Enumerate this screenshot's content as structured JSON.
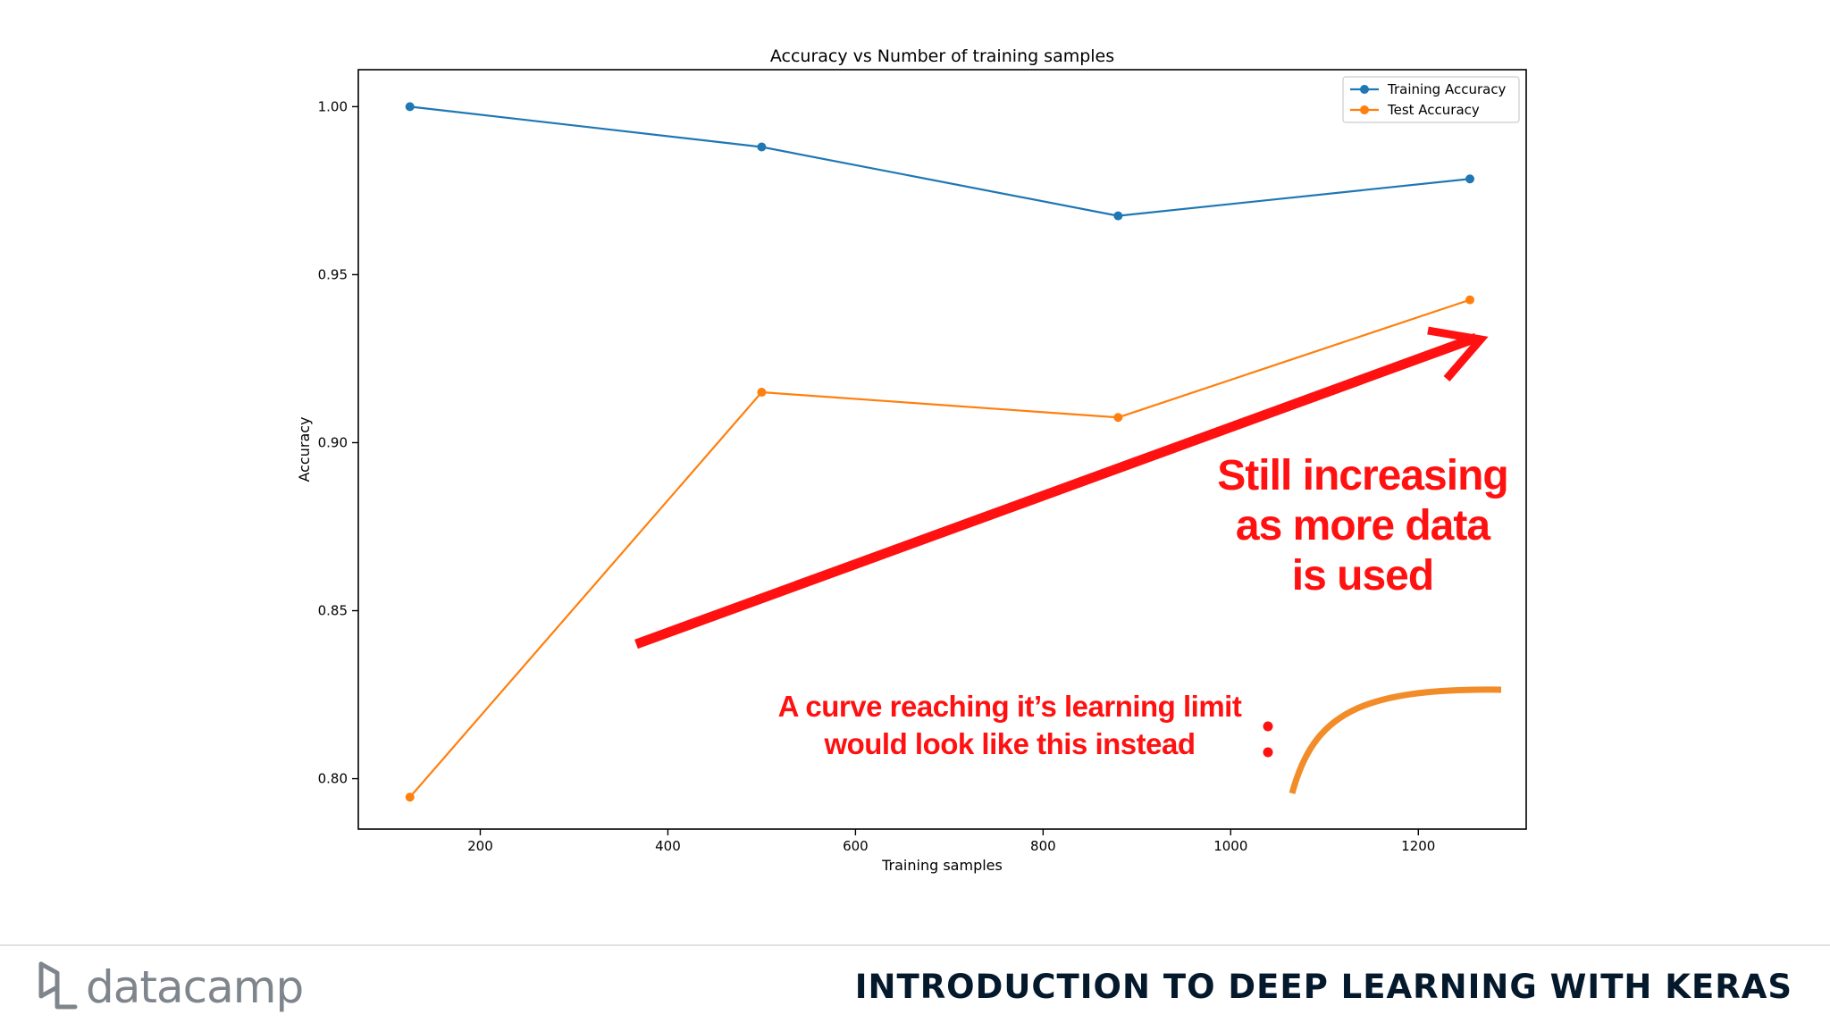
{
  "chart_data": {
    "type": "line",
    "title": "Accuracy vs Number of training samples",
    "xlabel": "Training samples",
    "ylabel": "Accuracy",
    "xlim": [
      70,
      1315
    ],
    "ylim": [
      0.785,
      1.011
    ],
    "xticks": [
      200,
      400,
      600,
      800,
      1000,
      1200
    ],
    "yticks": [
      0.8,
      0.85,
      0.9,
      0.95,
      1.0
    ],
    "grid": false,
    "legend": "top-right",
    "series": [
      {
        "name": "Training Accuracy",
        "color": "#1f77b4",
        "x": [
          125,
          500,
          880,
          1255
        ],
        "values": [
          1.0,
          0.988,
          0.9675,
          0.9785
        ]
      },
      {
        "name": "Test Accuracy",
        "color": "#ff7f0e",
        "x": [
          125,
          500,
          880,
          1255
        ],
        "values": [
          0.7945,
          0.915,
          0.9075,
          0.9425
        ]
      }
    ]
  },
  "annotations": {
    "still_increasing": [
      "Still increasing",
      "as more data",
      "is used"
    ],
    "learning_limit": [
      "A curve reaching it’s learning limit",
      "would look like this instead"
    ],
    "arrow_color": "#ff1111",
    "curve_color": "#f28c28"
  },
  "footer": {
    "brand": "datacamp",
    "course_title": "INTRODUCTION TO DEEP LEARNING WITH KERAS",
    "logo_color": "#7f858c",
    "title_color": "#05192d"
  }
}
